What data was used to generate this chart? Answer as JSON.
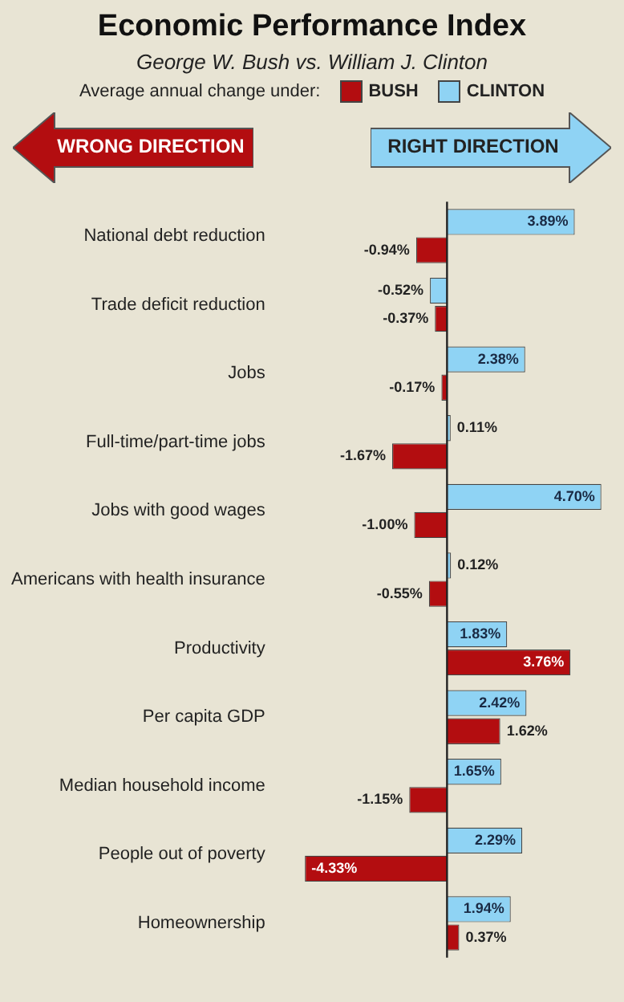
{
  "chart_data": {
    "type": "bar",
    "orientation": "horizontal",
    "title": "Economic Performance Index",
    "subtitle": "George W. Bush vs. William J. Clinton",
    "legend_title": "Average annual change under:",
    "legend": "top",
    "grid": false,
    "categories": [
      "National debt reduction",
      "Trade deficit reduction",
      "Jobs",
      "Full-time/part-time jobs",
      "Jobs with good wages",
      "Americans with health insurance",
      "Productivity",
      "Per capita GDP",
      "Median household income",
      "People out of poverty",
      "Homeownership"
    ],
    "series": [
      {
        "name": "CLINTON",
        "color": "#8fd3f4",
        "values": [
          3.89,
          -0.52,
          2.38,
          0.11,
          4.7,
          0.12,
          1.83,
          2.42,
          1.65,
          2.29,
          1.94
        ],
        "value_labels": [
          "3.89%",
          "-0.52%",
          "2.38%",
          "0.11%",
          "4.70%",
          "0.12%",
          "1.83%",
          "2.42%",
          "1.65%",
          "2.29%",
          "1.94%"
        ]
      },
      {
        "name": "BUSH",
        "color": "#b30d10",
        "values": [
          -0.94,
          -0.37,
          -0.17,
          -1.67,
          -1.0,
          -0.55,
          3.76,
          1.62,
          -1.15,
          -4.33,
          0.37
        ],
        "value_labels": [
          "-0.94%",
          "-0.37%",
          "-0.17%",
          "-1.67%",
          "-1.00%",
          "-0.55%",
          "3.76%",
          "1.62%",
          "-1.15%",
          "-4.33%",
          "0.37%"
        ]
      }
    ],
    "annotations": [
      "RIGHT DIRECTION",
      "WRONG DIRECTION"
    ]
  }
}
